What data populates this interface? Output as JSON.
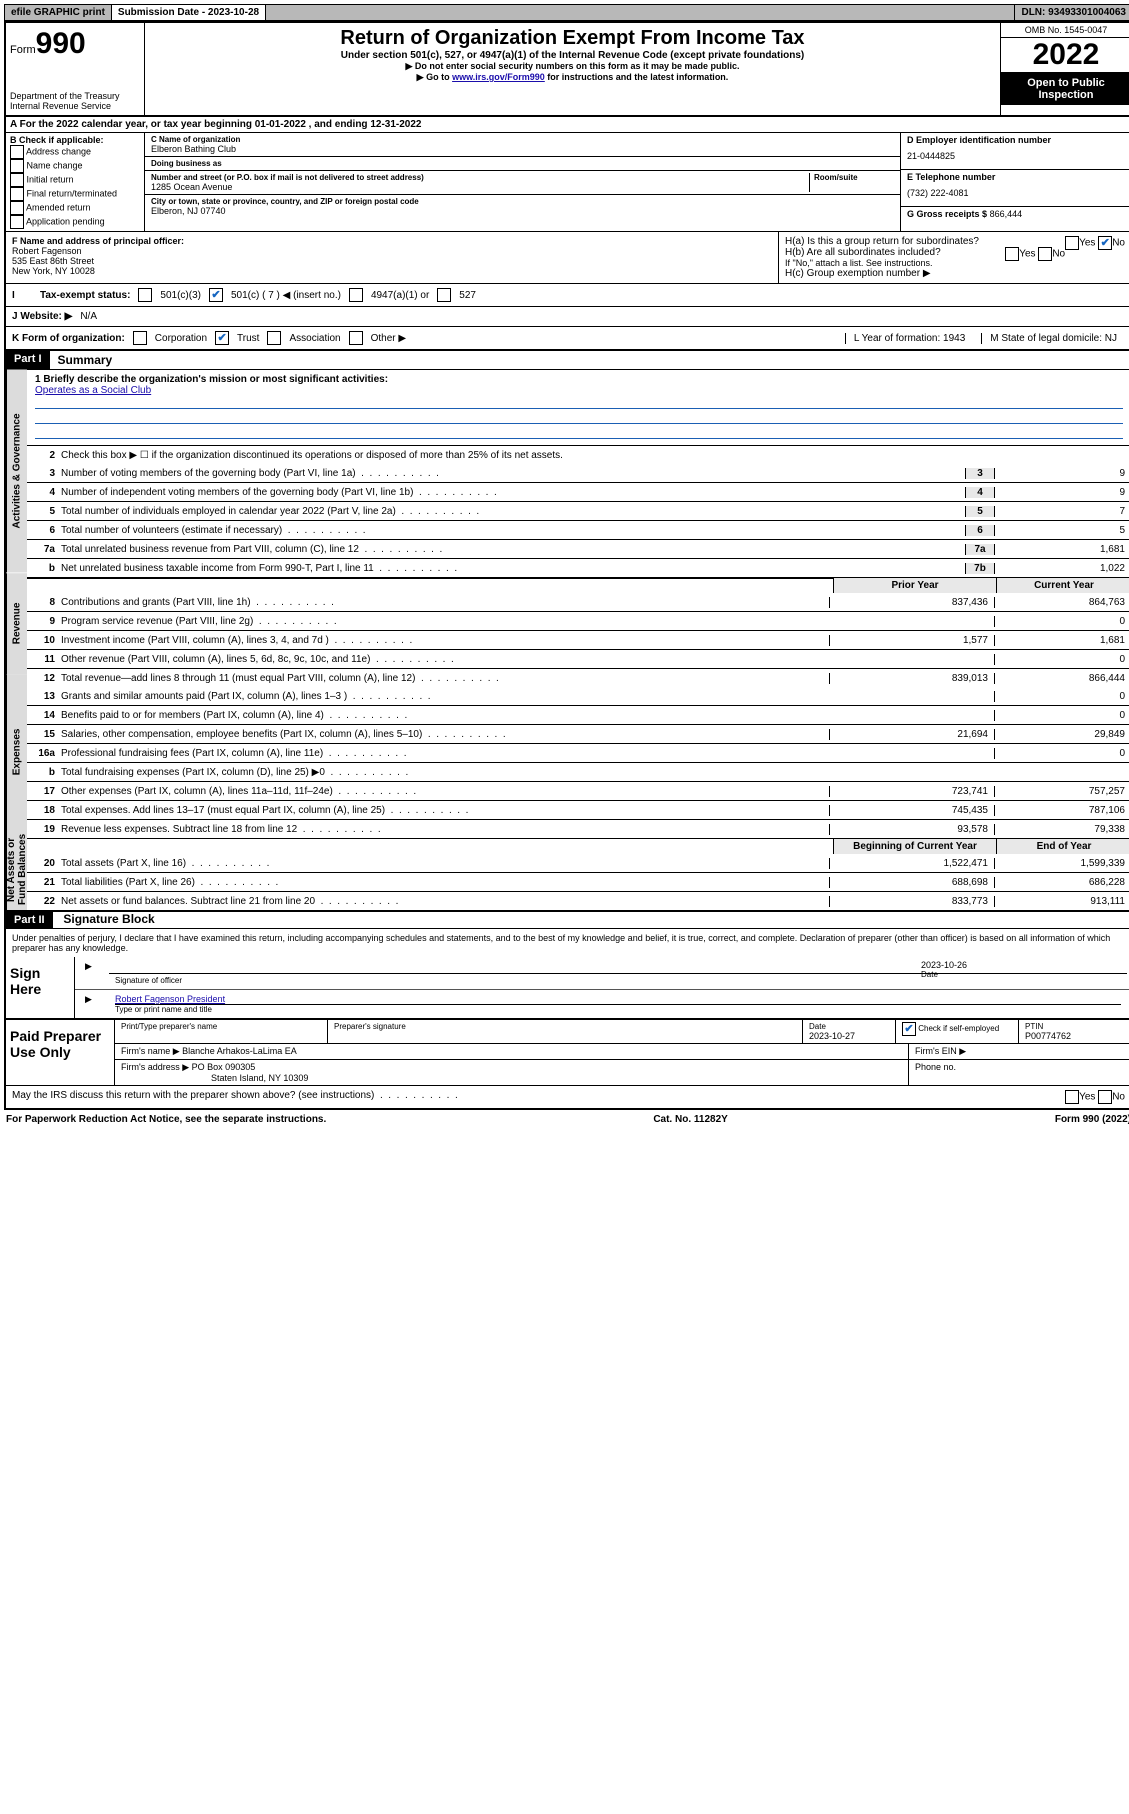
{
  "topbar": {
    "efile": "efile GRAPHIC print",
    "submission_label": "Submission Date - 2023-10-28",
    "dln": "DLN: 93493301004063"
  },
  "header": {
    "form_label": "Form",
    "form_number": "990",
    "dept": "Department of the Treasury\nInternal Revenue Service",
    "title": "Return of Organization Exempt From Income Tax",
    "subtitle": "Under section 501(c), 527, or 4947(a)(1) of the Internal Revenue Code (except private foundations)",
    "note1": "▶ Do not enter social security numbers on this form as it may be made public.",
    "note2_pre": "▶ Go to ",
    "note2_link": "www.irs.gov/Form990",
    "note2_post": " for instructions and the latest information.",
    "omb": "OMB No. 1545-0047",
    "year": "2022",
    "open": "Open to Public Inspection"
  },
  "rowA": "A For the 2022 calendar year, or tax year beginning 01-01-2022     , and ending 12-31-2022",
  "colB": {
    "header": "B Check if applicable:",
    "items": [
      "Address change",
      "Name change",
      "Initial return",
      "Final return/terminated",
      "Amended return",
      "Application pending"
    ]
  },
  "colC": {
    "name_lbl": "C Name of organization",
    "name": "Elberon Bathing Club",
    "dba_lbl": "Doing business as",
    "dba": "",
    "addr_lbl": "Number and street (or P.O. box if mail is not delivered to street address)",
    "room_lbl": "Room/suite",
    "addr": "1285 Ocean Avenue",
    "city_lbl": "City or town, state or province, country, and ZIP or foreign postal code",
    "city": "Elberon, NJ  07740"
  },
  "colD": {
    "ein_lbl": "D Employer identification number",
    "ein": "21-0444825",
    "tel_lbl": "E Telephone number",
    "tel": "(732) 222-4081",
    "gross_lbl": "G Gross receipts $",
    "gross": "866,444"
  },
  "officer": {
    "lblF": "F Name and address of principal officer:",
    "name": "Robert Fagenson",
    "addr1": "535 East 86th Street",
    "addr2": "New York, NY  10028",
    "Ha": "H(a)  Is this a group return for subordinates?",
    "Ha_no": true,
    "Hb": "H(b)  Are all subordinates included?",
    "Hb_note": "If \"No,\" attach a list. See instructions.",
    "Hc": "H(c)  Group exemption number ▶"
  },
  "status": {
    "lbl": "Tax-exempt status:",
    "opt1": "501(c)(3)",
    "opt2": "501(c) ( 7 ) ◀ (insert no.)",
    "opt3": "4947(a)(1) or",
    "opt4": "527",
    "checked": "opt2"
  },
  "website": {
    "lbl": "J   Website: ▶",
    "val": "N/A"
  },
  "korg": {
    "lbl": "K Form of organization:",
    "opts": [
      "Corporation",
      "Trust",
      "Association",
      "Other ▶"
    ],
    "checked": "Trust",
    "L": "L Year of formation: 1943",
    "M": "M State of legal domicile: NJ"
  },
  "part1": {
    "hdr": "Part I",
    "title": "Summary",
    "line1_lbl": "1  Briefly describe the organization's mission or most significant activities:",
    "line1_val": "Operates as a Social Club",
    "line2": "Check this box ▶ ☐  if the organization discontinued its operations or disposed of more than 25% of its net assets.",
    "sections": {
      "gov": "Activities & Governance",
      "rev": "Revenue",
      "exp": "Expenses",
      "net": "Net Assets or Fund Balances"
    },
    "gov_lines": [
      {
        "n": "3",
        "d": "Number of voting members of the governing body (Part VI, line 1a)",
        "c": "3",
        "v": "9"
      },
      {
        "n": "4",
        "d": "Number of independent voting members of the governing body (Part VI, line 1b)",
        "c": "4",
        "v": "9"
      },
      {
        "n": "5",
        "d": "Total number of individuals employed in calendar year 2022 (Part V, line 2a)",
        "c": "5",
        "v": "7"
      },
      {
        "n": "6",
        "d": "Total number of volunteers (estimate if necessary)",
        "c": "6",
        "v": "5"
      },
      {
        "n": "7a",
        "d": "Total unrelated business revenue from Part VIII, column (C), line 12",
        "c": "7a",
        "v": "1,681"
      },
      {
        "n": "b",
        "d": "Net unrelated business taxable income from Form 990-T, Part I, line 11",
        "c": "7b",
        "v": "1,022"
      }
    ],
    "col_hdr_py": "Prior Year",
    "col_hdr_cy": "Current Year",
    "rev_lines": [
      {
        "n": "8",
        "d": "Contributions and grants (Part VIII, line 1h)",
        "py": "837,436",
        "cy": "864,763"
      },
      {
        "n": "9",
        "d": "Program service revenue (Part VIII, line 2g)",
        "py": "",
        "cy": "0"
      },
      {
        "n": "10",
        "d": "Investment income (Part VIII, column (A), lines 3, 4, and 7d )",
        "py": "1,577",
        "cy": "1,681"
      },
      {
        "n": "11",
        "d": "Other revenue (Part VIII, column (A), lines 5, 6d, 8c, 9c, 10c, and 11e)",
        "py": "",
        "cy": "0"
      },
      {
        "n": "12",
        "d": "Total revenue—add lines 8 through 11 (must equal Part VIII, column (A), line 12)",
        "py": "839,013",
        "cy": "866,444"
      }
    ],
    "exp_lines": [
      {
        "n": "13",
        "d": "Grants and similar amounts paid (Part IX, column (A), lines 1–3 )",
        "py": "",
        "cy": "0"
      },
      {
        "n": "14",
        "d": "Benefits paid to or for members (Part IX, column (A), line 4)",
        "py": "",
        "cy": "0"
      },
      {
        "n": "15",
        "d": "Salaries, other compensation, employee benefits (Part IX, column (A), lines 5–10)",
        "py": "21,694",
        "cy": "29,849"
      },
      {
        "n": "16a",
        "d": "Professional fundraising fees (Part IX, column (A), line 11e)",
        "py": "",
        "cy": "0"
      },
      {
        "n": "b",
        "d": "Total fundraising expenses (Part IX, column (D), line 25) ▶0",
        "py": "shade",
        "cy": "shade"
      },
      {
        "n": "17",
        "d": "Other expenses (Part IX, column (A), lines 11a–11d, 11f–24e)",
        "py": "723,741",
        "cy": "757,257"
      },
      {
        "n": "18",
        "d": "Total expenses. Add lines 13–17 (must equal Part IX, column (A), line 25)",
        "py": "745,435",
        "cy": "787,106"
      },
      {
        "n": "19",
        "d": "Revenue less expenses. Subtract line 18 from line 12",
        "py": "93,578",
        "cy": "79,338"
      }
    ],
    "net_hdr_py": "Beginning of Current Year",
    "net_hdr_cy": "End of Year",
    "net_lines": [
      {
        "n": "20",
        "d": "Total assets (Part X, line 16)",
        "py": "1,522,471",
        "cy": "1,599,339"
      },
      {
        "n": "21",
        "d": "Total liabilities (Part X, line 26)",
        "py": "688,698",
        "cy": "686,228"
      },
      {
        "n": "22",
        "d": "Net assets or fund balances. Subtract line 21 from line 20",
        "py": "833,773",
        "cy": "913,111"
      }
    ]
  },
  "part2": {
    "hdr": "Part II",
    "title": "Signature Block",
    "decl": "Under penalties of perjury, I declare that I have examined this return, including accompanying schedules and statements, and to the best of my knowledge and belief, it is true, correct, and complete. Declaration of preparer (other than officer) is based on all information of which preparer has any knowledge.",
    "sign_here": "Sign Here",
    "sig_officer_lbl": "Signature of officer",
    "sig_date": "2023-10-26",
    "date_lbl": "Date",
    "officer_name": "Robert Fagenson  President",
    "officer_name_lbl": "Type or print name and title",
    "paid": "Paid Preparer Use Only",
    "p_name_lbl": "Print/Type preparer's name",
    "p_sig_lbl": "Preparer's signature",
    "p_date_lbl": "Date",
    "p_date": "2023-10-27",
    "p_self_lbl": "Check ☑ if self-employed",
    "ptin_lbl": "PTIN",
    "ptin": "P00774762",
    "firm_name_lbl": "Firm's name    ▶",
    "firm_name": "Blanche Arhakos-LaLima EA",
    "firm_ein_lbl": "Firm's EIN ▶",
    "firm_addr_lbl": "Firm's address ▶",
    "firm_addr1": "PO Box 090305",
    "firm_addr2": "Staten Island, NY  10309",
    "phone_lbl": "Phone no.",
    "discuss": "May the IRS discuss this return with the preparer shown above? (see instructions)"
  },
  "footer": {
    "left": "For Paperwork Reduction Act Notice, see the separate instructions.",
    "mid": "Cat. No. 11282Y",
    "right": "Form 990 (2022)"
  }
}
